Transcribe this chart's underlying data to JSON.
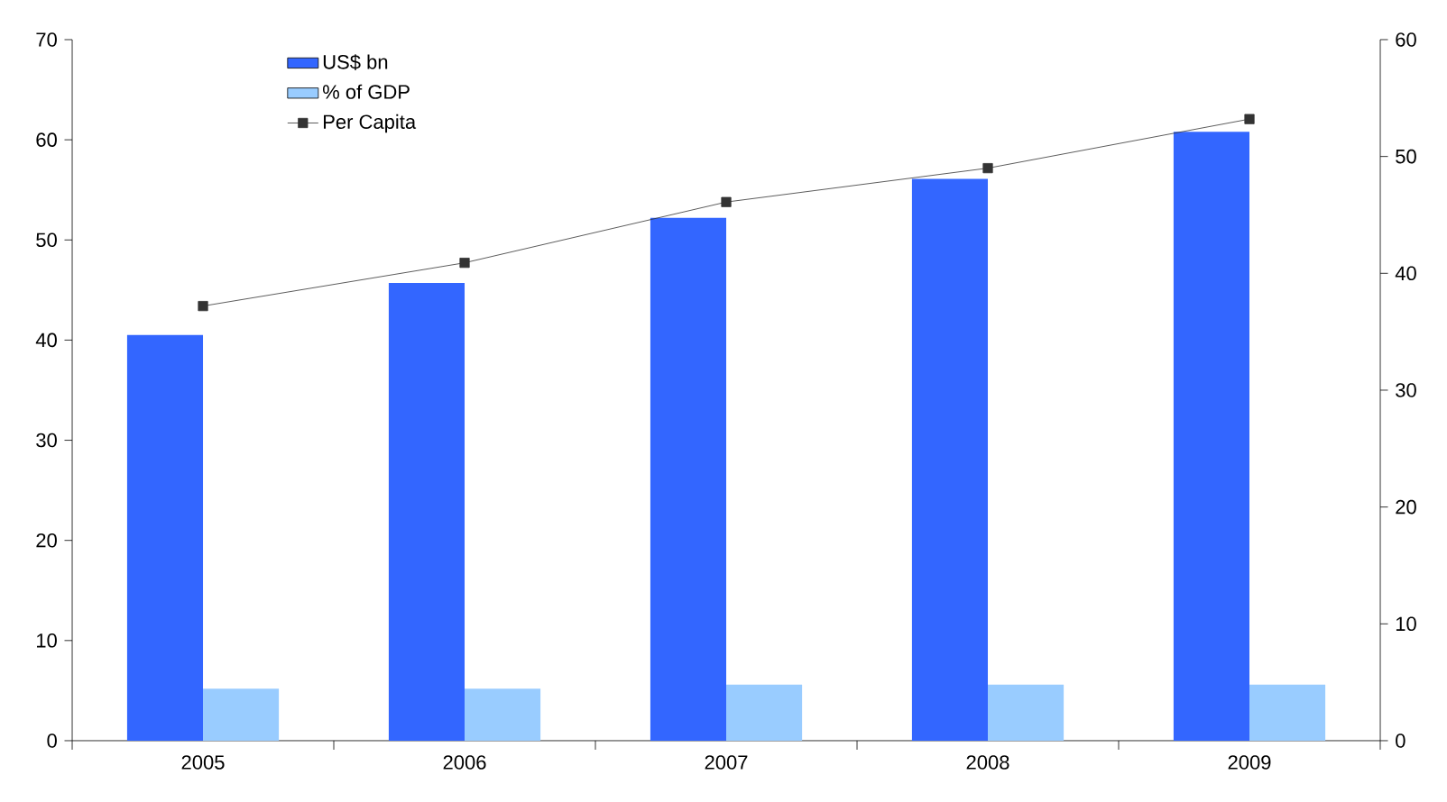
{
  "chart_data": {
    "type": "bar",
    "categories": [
      "2005",
      "2006",
      "2007",
      "2008",
      "2009"
    ],
    "series": [
      {
        "name": "US$ bn",
        "color": "#3366ff",
        "values": [
          40.5,
          45.7,
          52.2,
          56.1,
          60.8
        ]
      },
      {
        "name": "% of GDP",
        "color": "#99ccff",
        "values": [
          5.2,
          5.2,
          5.6,
          5.6,
          5.6
        ]
      },
      {
        "name": "Per Capita",
        "type": "line",
        "axis": "y2",
        "color": "#333333",
        "marker": "square",
        "values": [
          37.2,
          40.9,
          46.1,
          49.0,
          53.2
        ]
      }
    ],
    "ylim": [
      0,
      70
    ],
    "yticks": [
      0,
      10,
      20,
      30,
      40,
      50,
      60,
      70
    ],
    "y2lim": [
      0,
      60
    ],
    "y2ticks": [
      0,
      10,
      20,
      30,
      40,
      50,
      60
    ],
    "legend": "top left",
    "grid": false
  }
}
